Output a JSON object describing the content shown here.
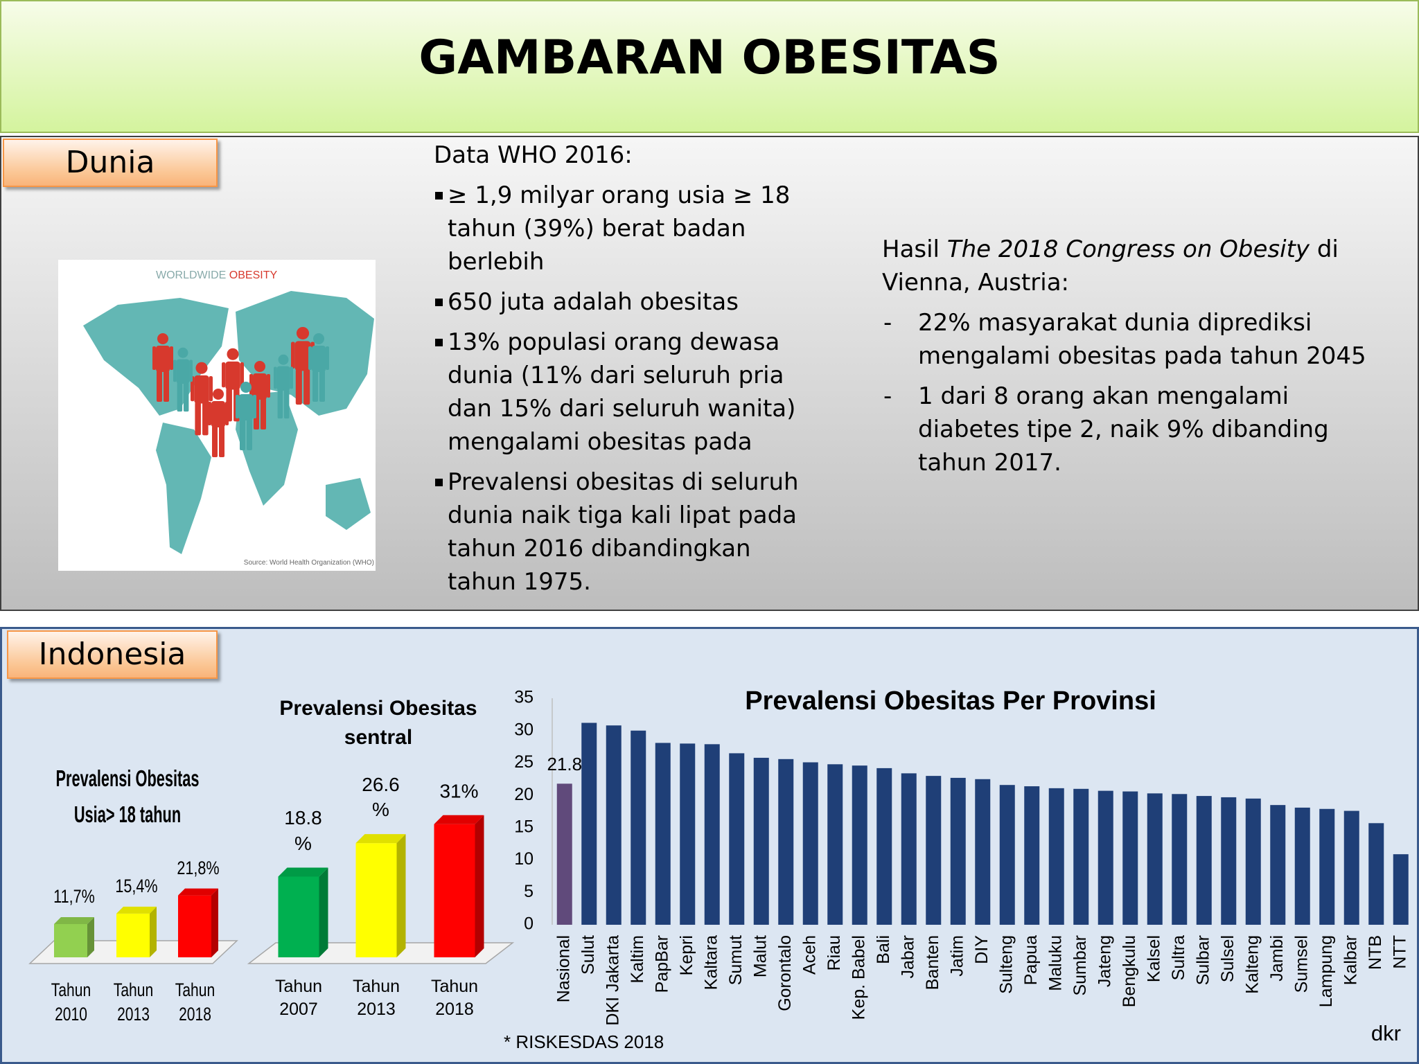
{
  "header": {
    "title": "GAMBARAN OBESITAS"
  },
  "dunia": {
    "label": "Dunia",
    "map": {
      "title": [
        "WORLDWIDE ",
        "OBESITY"
      ],
      "source": "Source: World Health Organization (WHO)"
    },
    "who": {
      "heading": "Data WHO 2016:",
      "bullets": [
        "≥ 1,9 milyar orang usia ≥ 18 tahun (39%) berat badan berlebih",
        "650 juta adalah obesitas",
        "13% populasi orang dewasa dunia (11% dari seluruh pria dan 15% dari seluruh wanita) mengalami obesitas pada",
        "Prevalensi obesitas di seluruh dunia naik tiga kali lipat pada tahun 2016 dibandingkan tahun 1975."
      ]
    },
    "congress": {
      "intro": [
        "Hasil ",
        "The 2018 Congress on Obesity",
        " di Vienna, Austria:"
      ],
      "items": [
        "22% masyarakat dunia diprediksi mengalami obesitas pada tahun 2045",
        "1 dari 8 orang akan mengalami diabetes tipe 2, naik 9% dibanding tahun 2017."
      ]
    }
  },
  "indonesia": {
    "label": "Indonesia",
    "source": "* RISKESDAS 2018",
    "author": "dkr"
  },
  "chart_data": [
    {
      "type": "bar",
      "title": "Prevalensi Obesitas Usia> 18 tahun",
      "categories": [
        "Tahun 2010",
        "Tahun 2013",
        "Tahun 2018"
      ],
      "values": [
        11.7,
        15.4,
        21.8
      ],
      "value_labels": [
        "11,7%",
        "15,4%",
        "21,8%"
      ],
      "colors": [
        "#92d050",
        "#ffff00",
        "#ff0000"
      ]
    },
    {
      "type": "bar",
      "title": "Prevalensi Obesitas sentral",
      "categories": [
        "Tahun 2007",
        "Tahun 2013",
        "Tahun 2018"
      ],
      "values": [
        18.8,
        26.6,
        31
      ],
      "value_labels": [
        "18.8 %",
        "26.6 %",
        "31%"
      ],
      "colors": [
        "#00b050",
        "#ffff00",
        "#ff0000"
      ]
    },
    {
      "type": "bar",
      "title": "Prevalensi Obesitas Per Provinsi",
      "categories": [
        "Nasional",
        "Sulut",
        "DKI Jakarta",
        "Kaltim",
        "PapBar",
        "Kepri",
        "Kaltara",
        "Sumut",
        "Malut",
        "Gorontalo",
        "Aceh",
        "Riau",
        "Kep. Babel",
        "Bali",
        "Jabar",
        "Banten",
        "Jatim",
        "DIY",
        "Sulteng",
        "Papua",
        "Maluku",
        "Sumbar",
        "Jateng",
        "Bengkulu",
        "Kalsel",
        "Sultra",
        "Sulbar",
        "Sulsel",
        "Kalteng",
        "Jambi",
        "Sumsel",
        "Lampung",
        "Kalbar",
        "NTB",
        "NTT"
      ],
      "values": [
        21.8,
        31.2,
        30.8,
        30.0,
        28.1,
        28.0,
        27.9,
        26.5,
        25.8,
        25.6,
        25.1,
        24.8,
        24.6,
        24.2,
        23.4,
        23.0,
        22.7,
        22.5,
        21.6,
        21.4,
        21.1,
        21.0,
        20.7,
        20.6,
        20.3,
        20.2,
        19.9,
        19.7,
        19.5,
        18.5,
        18.1,
        17.9,
        17.6,
        15.7,
        10.9
      ],
      "value_labels": [
        "21.8",
        null,
        null,
        null,
        null,
        null,
        null,
        null,
        null,
        null,
        null,
        null,
        null,
        null,
        null,
        null,
        null,
        null,
        null,
        null,
        null,
        null,
        null,
        null,
        null,
        null,
        null,
        null,
        null,
        null,
        null,
        null,
        null,
        null,
        null
      ],
      "colors": [
        "#604a7b",
        "#1f3f77",
        "#1f3f77",
        "#1f3f77",
        "#1f3f77",
        "#1f3f77",
        "#1f3f77",
        "#1f3f77",
        "#1f3f77",
        "#1f3f77",
        "#1f3f77",
        "#1f3f77",
        "#1f3f77",
        "#1f3f77",
        "#1f3f77",
        "#1f3f77",
        "#1f3f77",
        "#1f3f77",
        "#1f3f77",
        "#1f3f77",
        "#1f3f77",
        "#1f3f77",
        "#1f3f77",
        "#1f3f77",
        "#1f3f77",
        "#1f3f77",
        "#1f3f77",
        "#1f3f77",
        "#1f3f77",
        "#1f3f77",
        "#1f3f77",
        "#1f3f77",
        "#1f3f77",
        "#1f3f77",
        "#1f3f77"
      ],
      "ylim": [
        0,
        35
      ],
      "yticks": [
        0,
        5,
        10,
        15,
        20,
        25,
        30,
        35
      ],
      "grid": false
    }
  ]
}
